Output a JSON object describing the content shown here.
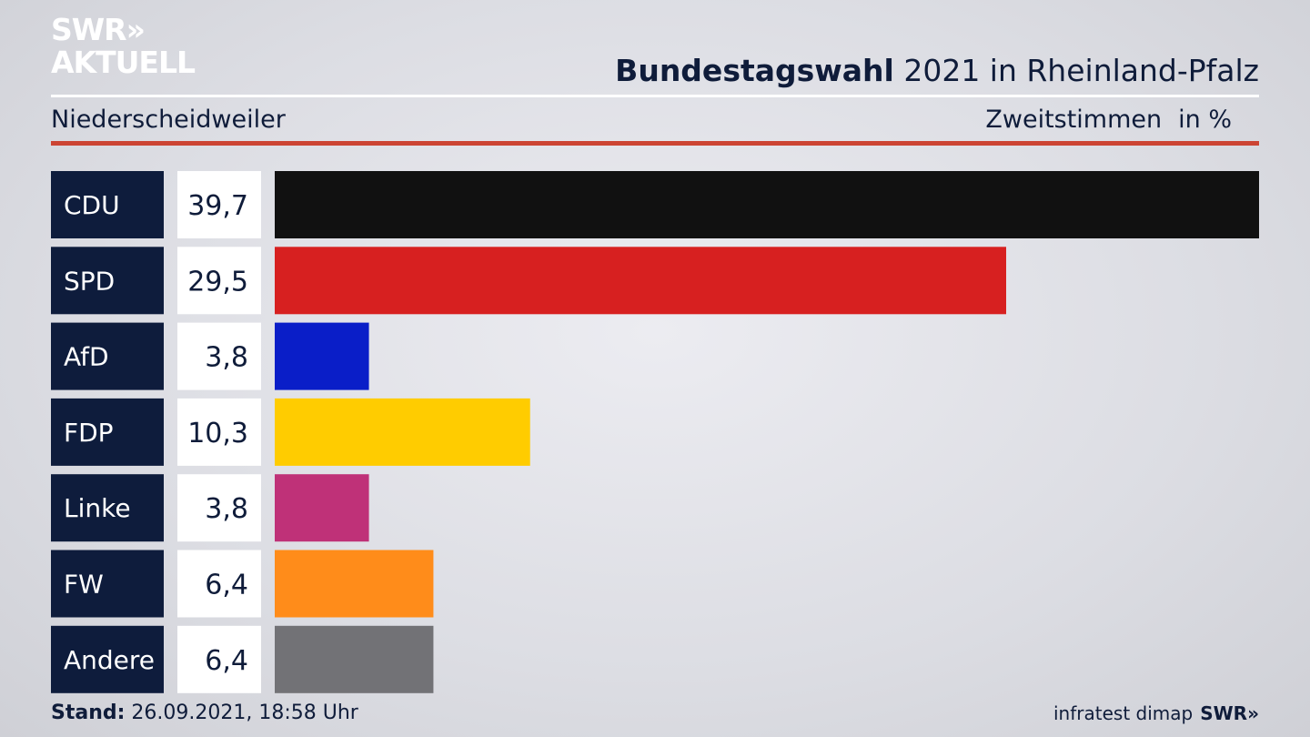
{
  "header": {
    "logo_line1": "SWR»",
    "logo_line2": "AKTUELL",
    "title_bold": "Bundestagswahl",
    "title_rest": "2021 in Rheinland-Pfalz",
    "location": "Niederscheidweiler",
    "measure": "Zweitstimmen",
    "unit": "in %"
  },
  "footer": {
    "stand_label": "Stand:",
    "stand_value": "26.09.2021, 18:58 Uhr",
    "source": "infratest dimap",
    "brand": "SWR»"
  },
  "colors": {
    "label_box": "#0e1c3c",
    "value_box": "#ffffff",
    "accent_rule": "#cc4433"
  },
  "chart_data": {
    "type": "bar",
    "orientation": "horizontal",
    "categories": [
      "CDU",
      "SPD",
      "AfD",
      "FDP",
      "Linke",
      "FW",
      "Andere"
    ],
    "values": [
      39.7,
      29.5,
      3.8,
      10.3,
      3.8,
      6.4,
      6.4
    ],
    "value_labels": [
      "39,7",
      "29,5",
      "3,8",
      "10,3",
      "3,8",
      "6,4",
      "6,4"
    ],
    "bar_colors": [
      "#111111",
      "#d72020",
      "#0a1ec8",
      "#ffcc00",
      "#bf3178",
      "#ff8c1a",
      "#727276"
    ],
    "xlim": [
      0,
      39.7
    ]
  }
}
